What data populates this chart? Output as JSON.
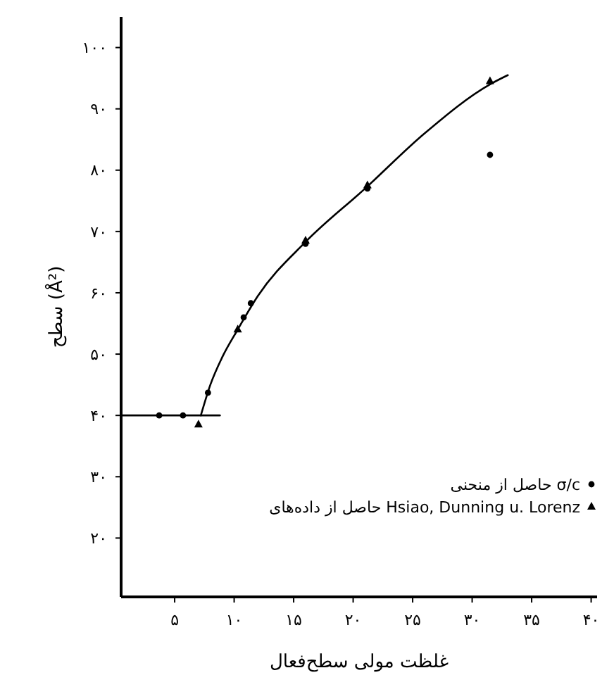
{
  "chart_data": {
    "type": "scatter",
    "xlabel": "غلظت مولی سطح‌فعال",
    "ylabel": "سطح (Å²)",
    "xlim": [
      0.5,
      40.5
    ],
    "ylim": [
      10.4,
      105
    ],
    "xticks": [
      {
        "value": 5,
        "label": "۵"
      },
      {
        "value": 10,
        "label": "۱۰"
      },
      {
        "value": 15,
        "label": "۱۵"
      },
      {
        "value": 20,
        "label": "۲۰"
      },
      {
        "value": 25,
        "label": "۲۵"
      },
      {
        "value": 30,
        "label": "۳۰"
      },
      {
        "value": 35,
        "label": "۳۵"
      },
      {
        "value": 40,
        "label": "۴۰"
      }
    ],
    "yticks": [
      {
        "value": 20,
        "label": "۲۰"
      },
      {
        "value": 30,
        "label": "۳۰"
      },
      {
        "value": 40,
        "label": "۴۰"
      },
      {
        "value": 50,
        "label": "۵۰"
      },
      {
        "value": 60,
        "label": "۶۰"
      },
      {
        "value": 70,
        "label": "۷۰"
      },
      {
        "value": 80,
        "label": "۸۰"
      },
      {
        "value": 90,
        "label": "۹۰"
      },
      {
        "value": 100,
        "label": "۱۰۰"
      }
    ],
    "legend": "bottom right",
    "grid": false,
    "series": [
      {
        "name": "حاصل از منحنی σ/c",
        "marker": "circle",
        "color": "#000000",
        "x": [
          3.7,
          5.7,
          7.8,
          10.8,
          11.4,
          16,
          21.2,
          31.5
        ],
        "values": [
          40,
          40,
          43.7,
          56,
          58.3,
          68,
          77,
          82.5
        ]
      },
      {
        "name": "حاصل از داده‌های Hsiao, Dunning u. Lorenz",
        "marker": "triangle",
        "color": "#000000",
        "x": [
          7,
          10.3,
          16,
          21.2,
          31.5
        ],
        "values": [
          38.5,
          54,
          68.5,
          77.5,
          94.5
        ]
      },
      {
        "type": "line",
        "marker": "none",
        "line_style": "solid",
        "color": "#000000",
        "x": [
          0.5,
          8.8
        ],
        "values": [
          40,
          40
        ]
      },
      {
        "type": "line",
        "marker": "none",
        "line_style": "solid",
        "color": "#000000",
        "x": [
          7.2,
          8,
          9,
          10.3,
          12,
          16,
          21,
          26,
          31.5,
          33
        ],
        "values": [
          40,
          45,
          49.5,
          54,
          59.5,
          68.3,
          77,
          86,
          94,
          95.5
        ]
      }
    ]
  }
}
